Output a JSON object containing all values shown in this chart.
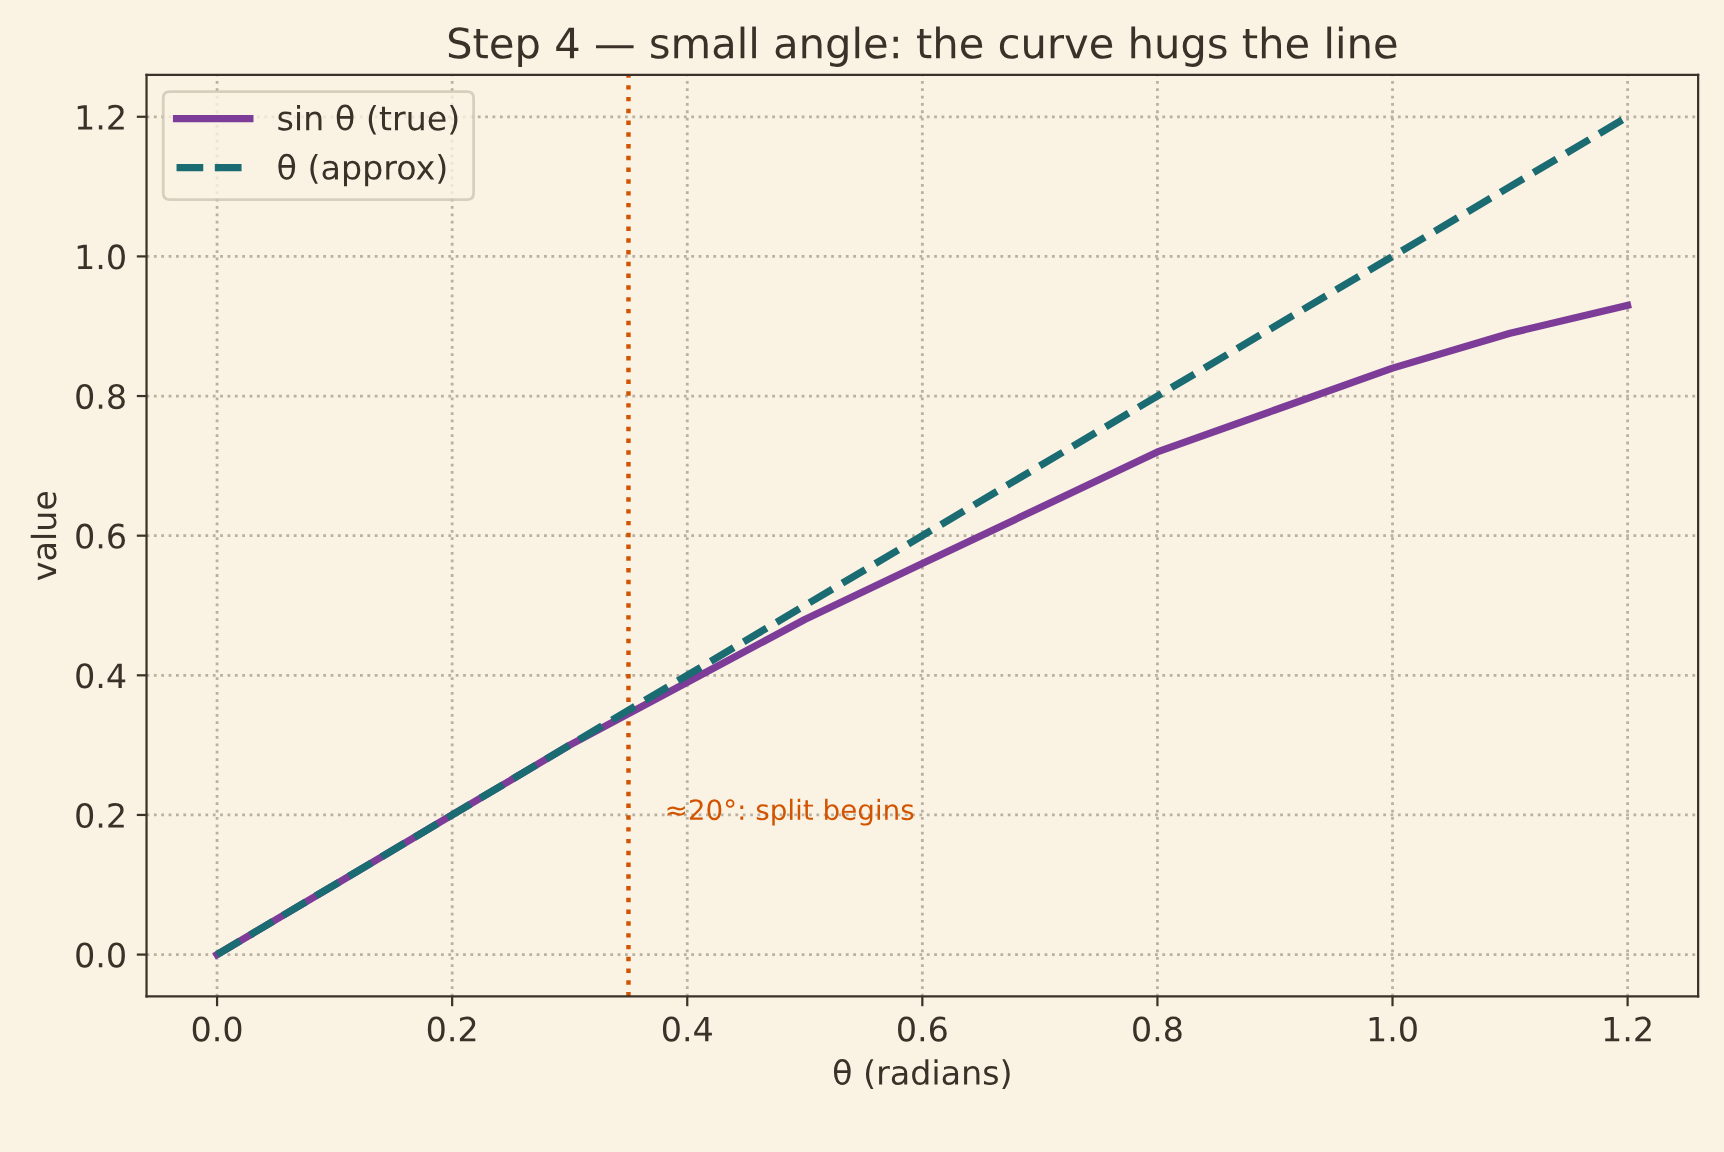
{
  "chart_data": {
    "type": "line",
    "title": "Step 4 — small angle: the curve hugs the line",
    "xlabel": "θ (radians)",
    "ylabel": "value",
    "series": [
      {
        "name": "sin θ (true)",
        "color": "#7d3c98",
        "line_style": "solid",
        "x": [
          0.0,
          0.1,
          0.2,
          0.3,
          0.4,
          0.5,
          0.6,
          0.7,
          0.8,
          0.9,
          1.0,
          1.1,
          1.2
        ],
        "values": [
          0.0,
          0.1,
          0.2,
          0.3,
          0.39,
          0.48,
          0.56,
          0.64,
          0.72,
          0.78,
          0.84,
          0.89,
          0.93
        ]
      },
      {
        "name": "θ (approx)",
        "color": "#1b6b73",
        "line_style": "dashed",
        "x": [
          0.0,
          1.2
        ],
        "values": [
          0.0,
          1.2
        ]
      }
    ],
    "xlim": [
      -0.06,
      1.26
    ],
    "ylim": [
      -0.06,
      1.26
    ],
    "xticks": [
      {
        "value": 0,
        "label": "0.0"
      },
      0.2,
      0.4,
      0.6,
      0.8,
      {
        "value": 1,
        "label": "1.0"
      },
      1.2
    ],
    "yticks": [
      {
        "value": 0,
        "label": "0.0"
      },
      0.2,
      0.4,
      0.6,
      0.8,
      {
        "value": 1,
        "label": "1.0"
      },
      1.2
    ],
    "ref_lines": [
      {
        "axis": "x",
        "value": 0.35,
        "color": "#d35400",
        "line_style": "dotted"
      }
    ],
    "annotations": [
      "≈20°: split begins"
    ],
    "grid": true,
    "legend": "top left",
    "marker": "none"
  }
}
